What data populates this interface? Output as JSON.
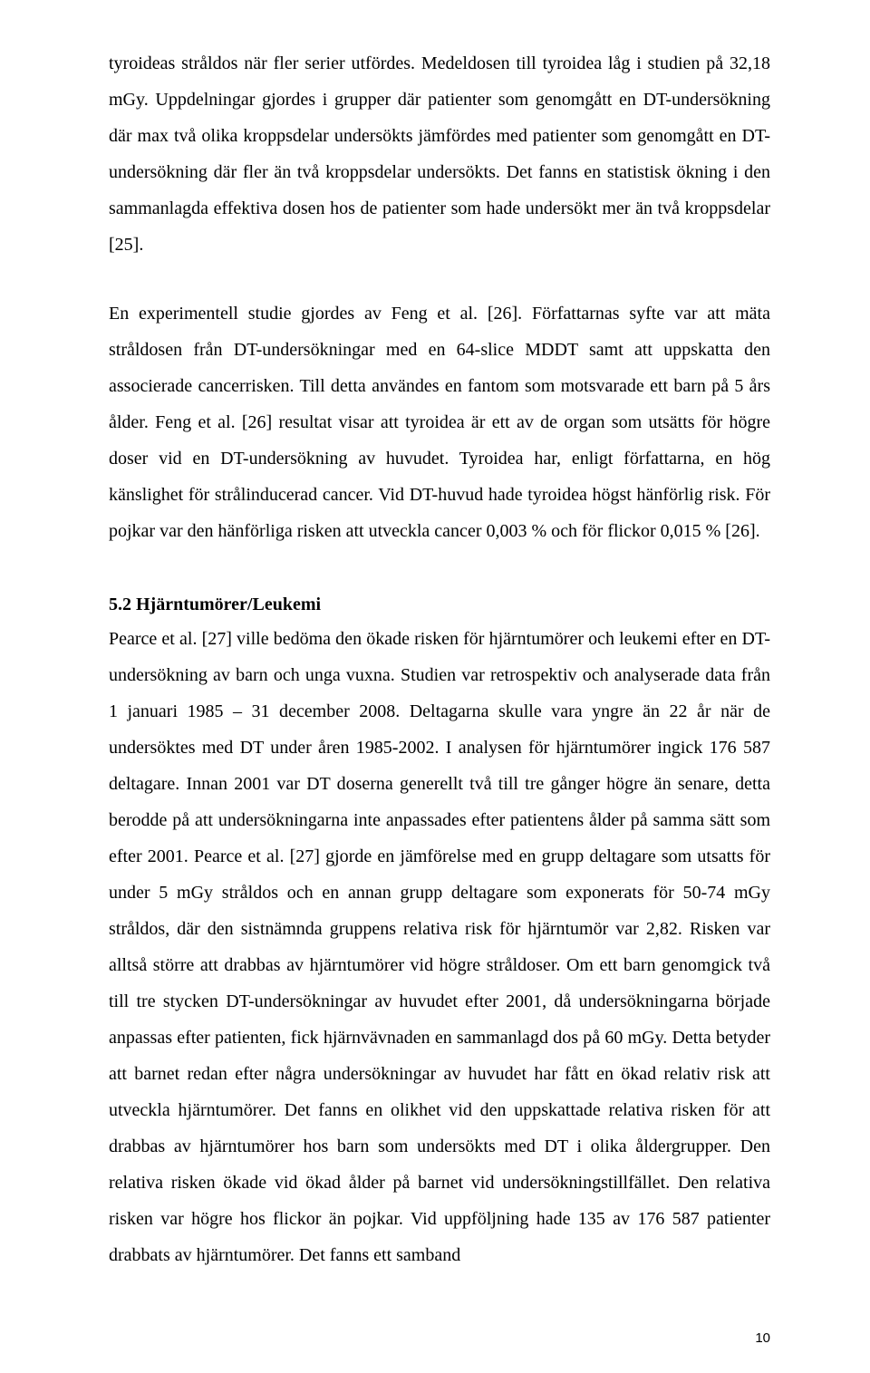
{
  "page": {
    "number": "10"
  },
  "paragraphs": {
    "p1": "tyroideas stråldos när fler serier utfördes. Medeldosen till tyroidea låg i studien på 32,18 mGy. Uppdelningar gjordes i grupper där patienter som genomgått en DT-undersökning där max två olika kroppsdelar undersökts jämfördes med patienter som genomgått en DT-undersökning där fler än två kroppsdelar undersökts. Det fanns en statistisk ökning i den sammanlagda effektiva dosen hos de patienter som hade undersökt mer än två kroppsdelar [25].",
    "p2": "En experimentell studie gjordes av Feng et al. [26]. Författarnas syfte var att mäta stråldosen från DT-undersökningar med en 64-slice MDDT samt att uppskatta den associerade cancerrisken. Till detta användes en fantom som motsvarade ett barn på 5 års ålder. Feng et al. [26] resultat visar att tyroidea är ett av de organ som utsätts för högre doser vid en DT-undersökning av huvudet. Tyroidea har, enligt författarna, en hög känslighet för strålinducerad cancer. Vid DT-huvud hade tyroidea högst hänförlig risk. För pojkar var den hänförliga risken att utveckla cancer 0,003 % och för flickor 0,015 % [26].",
    "heading1": "5.2 Hjärntumörer/Leukemi",
    "p3": "Pearce et al. [27] ville bedöma den ökade risken för hjärntumörer och leukemi efter en DT-undersökning av barn och unga vuxna. Studien var retrospektiv och analyserade data från 1 januari 1985 – 31 december 2008. Deltagarna skulle vara yngre än 22 år när de undersöktes med DT under åren 1985-2002. I analysen för hjärntumörer ingick 176 587 deltagare. Innan 2001 var DT doserna generellt två till tre gånger högre än senare, detta berodde på att undersökningarna inte anpassades efter patientens ålder på samma sätt som efter 2001. Pearce et al. [27] gjorde en jämförelse med en grupp deltagare som utsatts för under 5 mGy stråldos och en annan grupp deltagare som exponerats för 50-74 mGy stråldos, där den sistnämnda gruppens relativa risk för hjärntumör var 2,82. Risken var alltså större att drabbas av hjärntumörer vid högre stråldoser. Om ett barn genomgick två till tre stycken DT-undersökningar av huvudet efter 2001, då undersökningarna började anpassas efter patienten, fick hjärnvävnaden en sammanlagd dos på 60 mGy. Detta betyder att barnet redan efter några undersökningar av huvudet har fått en ökad relativ risk att utveckla hjärntumörer. Det fanns en olikhet vid den uppskattade relativa risken för att drabbas av hjärntumörer hos barn som undersökts med DT i olika åldergrupper. Den relativa risken ökade vid ökad ålder på barnet vid undersökningstillfället.  Den relativa risken var högre hos flickor än pojkar. Vid uppföljning hade 135 av 176 587 patienter drabbats av hjärntumörer. Det fanns ett samband"
  }
}
